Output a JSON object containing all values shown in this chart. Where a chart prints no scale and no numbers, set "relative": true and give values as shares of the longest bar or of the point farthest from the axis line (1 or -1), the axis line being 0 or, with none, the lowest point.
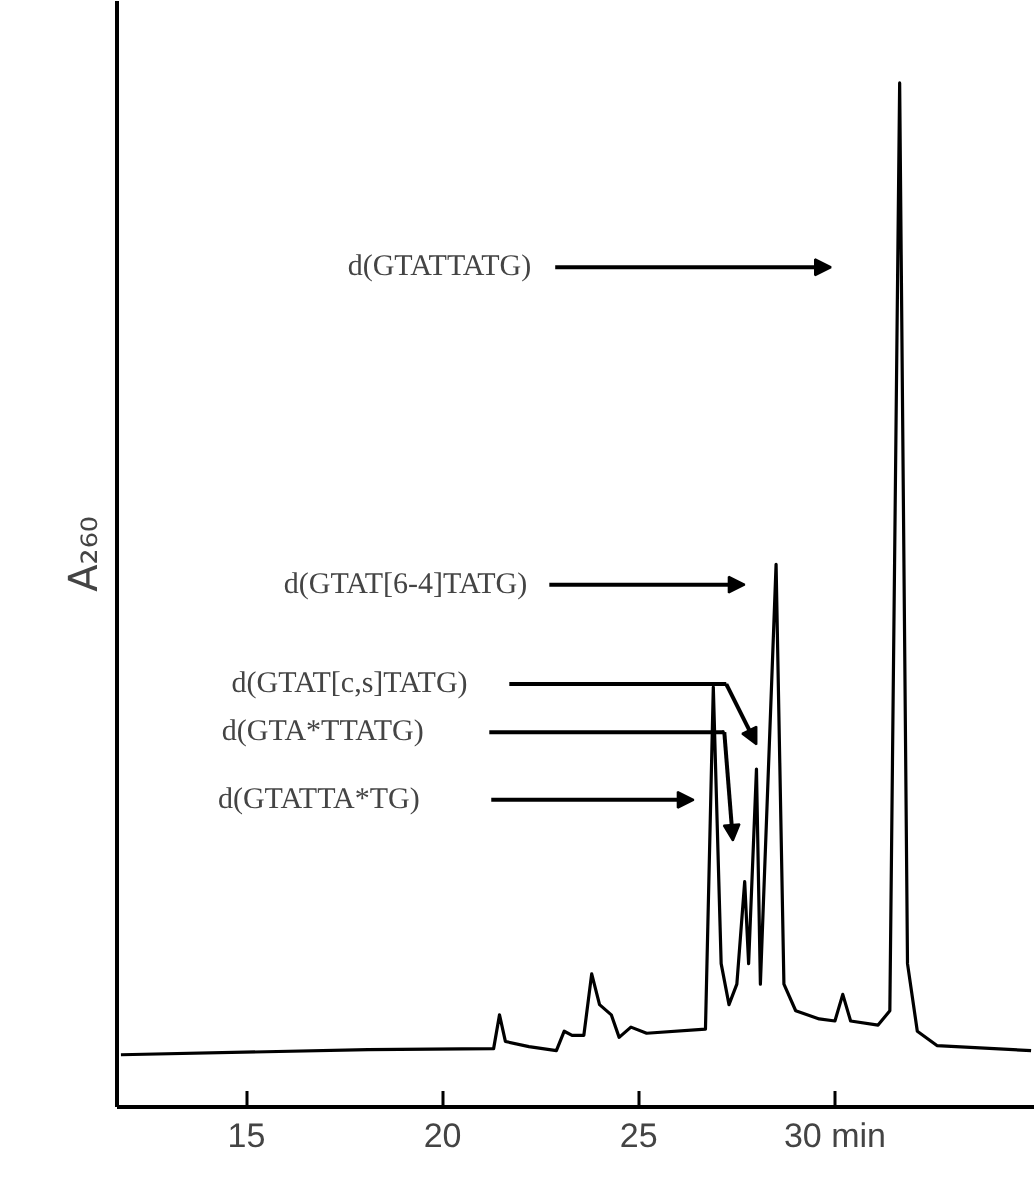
{
  "chart_data": {
    "type": "line",
    "relative": true,
    "ylabel": "A₂₆₀",
    "color": "#000000",
    "x": [
      11.8,
      18.1,
      21.3,
      21.45,
      21.6,
      22.2,
      22.9,
      23.1,
      23.3,
      23.6,
      23.8,
      24.0,
      24.3,
      24.5,
      24.8,
      25.2,
      26.7,
      26.9,
      27.1,
      27.3,
      27.5,
      27.7,
      27.8,
      28.0,
      28.1,
      28.5,
      28.7,
      29.0,
      29.6,
      30.0,
      30.2,
      30.4,
      31.1,
      31.4,
      31.65,
      31.85,
      32.1,
      32.6,
      35.0
    ],
    "values": [
      0.051,
      0.056,
      0.057,
      0.09,
      0.064,
      0.059,
      0.055,
      0.074,
      0.07,
      0.07,
      0.13,
      0.1,
      0.09,
      0.068,
      0.078,
      0.072,
      0.076,
      0.41,
      0.14,
      0.1,
      0.12,
      0.22,
      0.14,
      0.33,
      0.12,
      0.53,
      0.12,
      0.094,
      0.086,
      0.084,
      0.11,
      0.084,
      0.08,
      0.094,
      1.0,
      0.14,
      0.074,
      0.06,
      0.055
    ],
    "xlim": [
      11.7,
      35.1
    ],
    "xticks": [
      15,
      20,
      25,
      {
        "value": 30,
        "label": "30 min"
      }
    ],
    "grid": false,
    "marker": "none",
    "line_style": "solid",
    "annotations": [
      "d(GTATTATG)",
      "d(GTAT[6-4]TATG)",
      "d(GTAT[c,s]TATG)",
      "d(GTA*TTATG)",
      "d(GTATTA*TG)"
    ]
  }
}
